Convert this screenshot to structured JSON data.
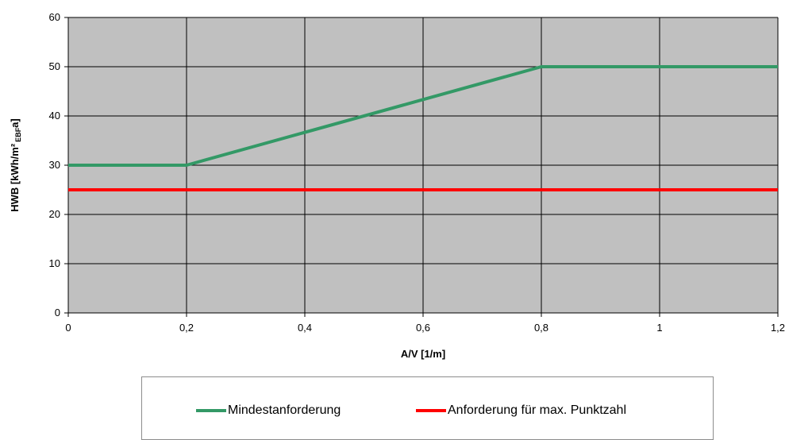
{
  "chart_data": {
    "type": "line",
    "title": "",
    "xlabel": "A/V [1/m]",
    "ylabel": "HWB [kWh/m² EBFa]",
    "ylabel_parts": {
      "main": "HWB [kWh/m²",
      "sub": "EBF",
      "end": "a]"
    },
    "xlim": [
      0,
      1.2
    ],
    "ylim": [
      0,
      60
    ],
    "x_ticks": [
      0,
      0.2,
      0.4,
      0.6,
      0.8,
      1.0,
      1.2
    ],
    "x_tick_labels": [
      "0",
      "0,2",
      "0,4",
      "0,6",
      "0,8",
      "1",
      "1,2"
    ],
    "y_ticks": [
      0,
      10,
      20,
      30,
      40,
      50,
      60
    ],
    "y_tick_labels": [
      "0",
      "10",
      "20",
      "30",
      "40",
      "50",
      "60"
    ],
    "grid": true,
    "plot_background": "#c0c0c0",
    "legend_position": "bottom",
    "series": [
      {
        "name": "Mindestanforderung",
        "color": "#339966",
        "x": [
          0,
          0.2,
          0.8,
          1.2
        ],
        "y": [
          30,
          30,
          50,
          50
        ]
      },
      {
        "name": "Anforderung für max. Punktzahl",
        "color": "#ff0000",
        "x": [
          0,
          1.2
        ],
        "y": [
          25,
          25
        ]
      }
    ]
  }
}
